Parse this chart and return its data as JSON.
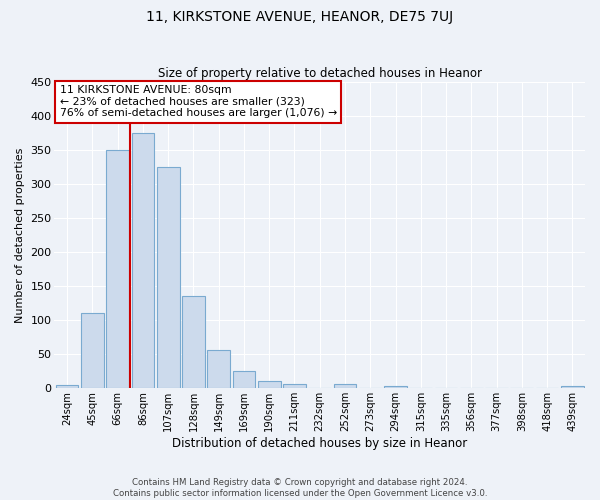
{
  "title": "11, KIRKSTONE AVENUE, HEANOR, DE75 7UJ",
  "subtitle": "Size of property relative to detached houses in Heanor",
  "xlabel": "Distribution of detached houses by size in Heanor",
  "ylabel": "Number of detached properties",
  "bar_labels": [
    "24sqm",
    "45sqm",
    "66sqm",
    "86sqm",
    "107sqm",
    "128sqm",
    "149sqm",
    "169sqm",
    "190sqm",
    "211sqm",
    "232sqm",
    "252sqm",
    "273sqm",
    "294sqm",
    "315sqm",
    "335sqm",
    "356sqm",
    "377sqm",
    "398sqm",
    "418sqm",
    "439sqm"
  ],
  "bar_values": [
    5,
    111,
    350,
    375,
    325,
    135,
    57,
    25,
    11,
    6,
    0,
    7,
    0,
    3,
    0,
    0,
    0,
    0,
    0,
    0,
    3
  ],
  "bar_color": "#ccdaec",
  "bar_edge_color": "#7aaad0",
  "ylim": [
    0,
    450
  ],
  "yticks": [
    0,
    50,
    100,
    150,
    200,
    250,
    300,
    350,
    400,
    450
  ],
  "property_line_color": "#cc0000",
  "annotation_line1": "11 KIRKSTONE AVENUE: 80sqm",
  "annotation_line2": "← 23% of detached houses are smaller (323)",
  "annotation_line3": "76% of semi-detached houses are larger (1,076) →",
  "annotation_box_color": "#ffffff",
  "annotation_box_edge": "#cc0000",
  "footer_line1": "Contains HM Land Registry data © Crown copyright and database right 2024.",
  "footer_line2": "Contains public sector information licensed under the Open Government Licence v3.0.",
  "bg_color": "#eef2f8",
  "grid_color": "#ffffff"
}
